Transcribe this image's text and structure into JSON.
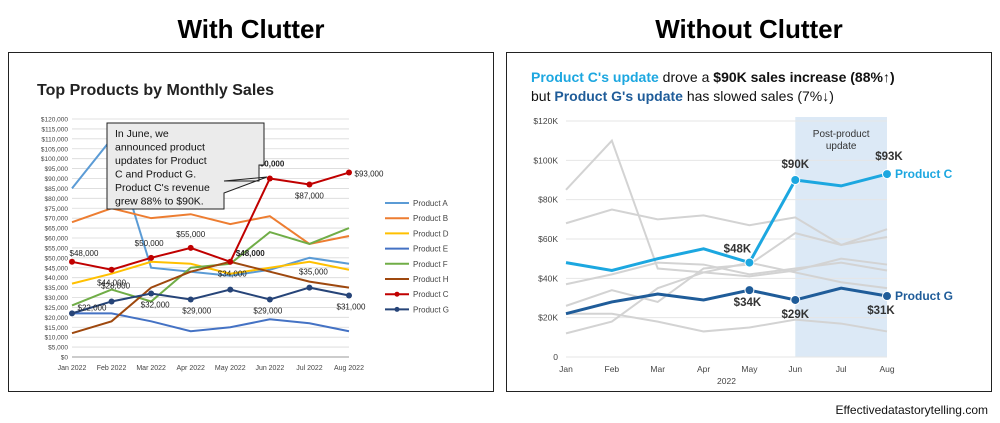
{
  "headers": {
    "left": "With Clutter",
    "right": "Without Clutter"
  },
  "credit": "Effectivedatastorytelling.com",
  "chart_data": [
    {
      "type": "line",
      "title": "Top Products by Monthly Sales",
      "categories": [
        "Jan 2022",
        "Feb 2022",
        "Mar 2022",
        "Apr 2022",
        "May 2022",
        "Jun 2022",
        "Jul 2022",
        "Aug 2022"
      ],
      "ylim": [
        0,
        120000
      ],
      "yticks": [
        "$0",
        "$5,000",
        "$10,000",
        "$15,000",
        "$20,000",
        "$25,000",
        "$30,000",
        "$35,000",
        "$40,000",
        "$45,000",
        "$50,000",
        "$55,000",
        "$60,000",
        "$65,000",
        "$70,000",
        "$75,000",
        "$80,000",
        "$85,000",
        "$90,000",
        "$95,000",
        "$100,000",
        "$105,000",
        "$110,000",
        "$115,000",
        "$120,000"
      ],
      "grid": true,
      "legend_position": "right",
      "series": [
        {
          "name": "Product A",
          "color": "#5B9BD5",
          "values": [
            85000,
            110000,
            45000,
            43000,
            41000,
            44000,
            50000,
            47000
          ]
        },
        {
          "name": "Product B",
          "color": "#ED7D31",
          "values": [
            68000,
            75000,
            70000,
            72000,
            67000,
            71000,
            57000,
            61000
          ]
        },
        {
          "name": "Product D",
          "color": "#FFC000",
          "values": [
            37000,
            42000,
            48000,
            47000,
            42000,
            45000,
            48000,
            44000
          ]
        },
        {
          "name": "Product E",
          "color": "#4472C4",
          "values": [
            22000,
            22000,
            18000,
            13000,
            15000,
            19000,
            17000,
            13000
          ]
        },
        {
          "name": "Product F",
          "color": "#70AD47",
          "values": [
            26000,
            34000,
            28000,
            45000,
            47000,
            63000,
            57000,
            65000
          ]
        },
        {
          "name": "Product H",
          "color": "#9E480E",
          "values": [
            12000,
            18000,
            35000,
            43000,
            48000,
            43000,
            38000,
            35000
          ]
        },
        {
          "name": "Product C",
          "color": "#C00000",
          "values": [
            48000,
            44000,
            50000,
            55000,
            48000,
            90000,
            87000,
            93000
          ]
        },
        {
          "name": "Product G",
          "color": "#264478",
          "values": [
            22000,
            28000,
            32000,
            29000,
            34000,
            29000,
            35000,
            31000
          ]
        }
      ],
      "data_labels": {
        "Product C": [
          "$48,000",
          "$44,000",
          "$50,000",
          "$55,000",
          "$48,000",
          "$90,000",
          "$87,000",
          "$93,000"
        ],
        "Product G": [
          "$22,000",
          "$28,000",
          "$32,000",
          "$29,000",
          "$34,000",
          "$29,000",
          "$35,000",
          "$31,000"
        ]
      },
      "callout": [
        "In June, we",
        "announced product",
        "updates for Product",
        "C and Product G.",
        "Product C's revenue",
        "grew 88% to $90K."
      ]
    },
    {
      "type": "line",
      "title_parts": [
        {
          "text": "Product C's update",
          "color": "#1CA7E0",
          "bold": true
        },
        {
          "text": " drove a ",
          "color": "#111111",
          "bold": false
        },
        {
          "text": "$90K sales increase (88%↑)",
          "color": "#111111",
          "bold": true
        }
      ],
      "title_line2_parts": [
        {
          "text": "but ",
          "color": "#111111",
          "bold": false
        },
        {
          "text": "Product G's update",
          "color": "#1F5C99",
          "bold": true
        },
        {
          "text": " has slowed sales (7%↓)",
          "color": "#111111",
          "bold": false
        }
      ],
      "categories": [
        "Jan",
        "Feb",
        "Mar",
        "Apr",
        "May",
        "Jun",
        "Jul",
        "Aug"
      ],
      "xlabel": "2022",
      "ylim": [
        0,
        120000
      ],
      "yticks": [
        "0",
        "$20K",
        "$40K",
        "$60K",
        "$80K",
        "$100K",
        "$120K"
      ],
      "grid": true,
      "highlight": {
        "from": "Jun",
        "to": "Aug",
        "label": [
          "Post-product",
          "update"
        ],
        "color": "#DCE9F6"
      },
      "background_color": "#D3D3D3",
      "series": [
        {
          "name": "Product C",
          "color": "#1CA7E0",
          "values": [
            48000,
            44000,
            50000,
            55000,
            48000,
            90000,
            87000,
            93000
          ]
        },
        {
          "name": "Product G",
          "color": "#1F5C99",
          "values": [
            22000,
            28000,
            32000,
            29000,
            34000,
            29000,
            35000,
            31000
          ]
        }
      ],
      "data_labels": {
        "Product C": {
          "May": "$48K",
          "Jun": "$90K",
          "Aug": "$93K"
        },
        "Product G": {
          "May": "$34K",
          "Jun": "$29K",
          "Aug": "$31K"
        }
      }
    }
  ]
}
